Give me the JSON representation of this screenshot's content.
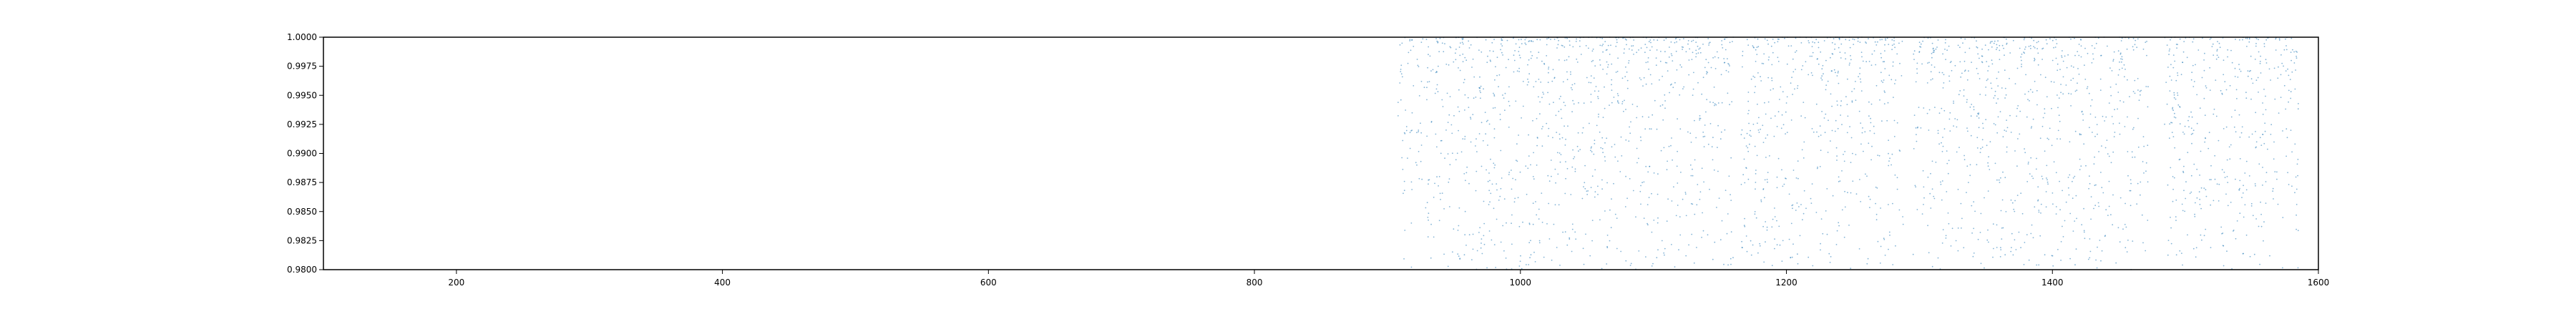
{
  "chart_data": {
    "type": "scatter",
    "title": "",
    "xlabel": "",
    "ylabel": "",
    "xlim": [
      100,
      1600
    ],
    "ylim": [
      0.98,
      1.0
    ],
    "grid": false,
    "point_color": "#1f77b4",
    "x_ticks": [
      {
        "value": 200,
        "label": "200"
      },
      {
        "value": 400,
        "label": "400"
      },
      {
        "value": 600,
        "label": "600"
      },
      {
        "value": 800,
        "label": "800"
      },
      {
        "value": 1000,
        "label": "1000"
      },
      {
        "value": 1200,
        "label": "1200"
      },
      {
        "value": 1400,
        "label": "1400"
      },
      {
        "value": 1600,
        "label": "1600"
      }
    ],
    "y_ticks": [
      {
        "value": 0.98,
        "label": "0.9800"
      },
      {
        "value": 0.9825,
        "label": "0.9825"
      },
      {
        "value": 0.985,
        "label": "0.9850"
      },
      {
        "value": 0.9875,
        "label": "0.9875"
      },
      {
        "value": 0.99,
        "label": "0.9900"
      },
      {
        "value": 0.9925,
        "label": "0.9925"
      },
      {
        "value": 0.995,
        "label": "0.9950"
      },
      {
        "value": 0.9975,
        "label": "0.9975"
      },
      {
        "value": 1.0,
        "label": "1.0000"
      }
    ],
    "series": [
      {
        "x_segments": [
          [
            908,
            1160
          ],
          [
            1166,
            1288
          ],
          [
            1295,
            1472
          ],
          [
            1484,
            1585
          ]
        ],
        "y_range": [
          0.98,
          1.0
        ],
        "density_note": "points concentrated near y=1.0"
      }
    ]
  }
}
